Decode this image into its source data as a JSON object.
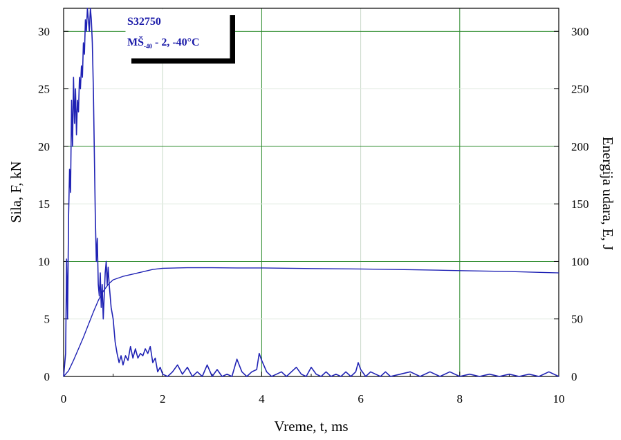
{
  "chart_data": {
    "type": "line",
    "xlabel": "Vreme,  t, ms",
    "ylabel_left": "Sila, F, kN",
    "ylabel_right": "Energija udara, E, J",
    "xlim": [
      0,
      10
    ],
    "ylim_left": [
      0,
      32
    ],
    "ylim_right": [
      0,
      320
    ],
    "x_ticks": [
      0,
      2,
      4,
      6,
      8,
      10
    ],
    "y_left_ticks": [
      0,
      5,
      10,
      15,
      20,
      25,
      30
    ],
    "y_right_ticks": [
      0,
      50,
      100,
      150,
      200,
      250,
      300
    ],
    "grid": true,
    "legend": {
      "position": "top-left",
      "line1": "S32750",
      "line2_main": "MŠ",
      "line2_sub": "-40",
      "line2_rest": " - 2,  -40°C"
    },
    "series": [
      {
        "axis": "left",
        "x": [
          0.0,
          0.04,
          0.06,
          0.08,
          0.1,
          0.12,
          0.14,
          0.16,
          0.18,
          0.2,
          0.22,
          0.24,
          0.26,
          0.28,
          0.3,
          0.32,
          0.34,
          0.36,
          0.38,
          0.4,
          0.42,
          0.44,
          0.46,
          0.48,
          0.5,
          0.52,
          0.54,
          0.56,
          0.58,
          0.6,
          0.62,
          0.64,
          0.66,
          0.68,
          0.7,
          0.72,
          0.74,
          0.76,
          0.78,
          0.8,
          0.82,
          0.84,
          0.86,
          0.88,
          0.9,
          0.92,
          0.94,
          0.96,
          1.0,
          1.04,
          1.08,
          1.12,
          1.16,
          1.2,
          1.25,
          1.3,
          1.35,
          1.4,
          1.45,
          1.5,
          1.55,
          1.6,
          1.65,
          1.7,
          1.75,
          1.8,
          1.85,
          1.9,
          1.95,
          2.0,
          2.1,
          2.2,
          2.3,
          2.4,
          2.5,
          2.6,
          2.7,
          2.8,
          2.9,
          3.0,
          3.1,
          3.2,
          3.3,
          3.4,
          3.5,
          3.6,
          3.7,
          3.8,
          3.9,
          3.95,
          4.0,
          4.1,
          4.2,
          4.3,
          4.4,
          4.5,
          4.6,
          4.7,
          4.8,
          4.9,
          5.0,
          5.1,
          5.2,
          5.3,
          5.4,
          5.5,
          5.6,
          5.7,
          5.8,
          5.9,
          5.95,
          6.0,
          6.1,
          6.2,
          6.3,
          6.4,
          6.5,
          6.6,
          6.8,
          7.0,
          7.2,
          7.4,
          7.6,
          7.8,
          8.0,
          8.2,
          8.4,
          8.6,
          8.8,
          9.0,
          9.2,
          9.4,
          9.6,
          9.8,
          10.0
        ],
        "y": [
          0.0,
          2.0,
          10.2,
          5.0,
          14.0,
          18.0,
          16.0,
          24.0,
          20.0,
          26.0,
          22.0,
          25.0,
          21.0,
          24.0,
          23.0,
          26.0,
          25.0,
          27.0,
          26.0,
          29.0,
          28.0,
          31.0,
          30.0,
          32.0,
          31.0,
          30.0,
          32.0,
          31.0,
          29.0,
          25.0,
          19.5,
          14.0,
          10.0,
          12.0,
          8.0,
          7.0,
          9.0,
          6.0,
          8.0,
          5.0,
          7.0,
          9.0,
          10.0,
          8.0,
          9.5,
          8.0,
          7.0,
          6.0,
          5.0,
          3.0,
          2.0,
          1.2,
          1.8,
          1.0,
          1.8,
          1.4,
          2.6,
          1.6,
          2.4,
          1.6,
          2.0,
          1.8,
          2.4,
          2.0,
          2.6,
          1.2,
          1.6,
          0.4,
          0.8,
          0.2,
          0.0,
          0.4,
          1.0,
          0.2,
          0.8,
          0.0,
          0.4,
          0.0,
          1.0,
          0.0,
          0.6,
          0.0,
          0.2,
          0.0,
          1.5,
          0.4,
          0.0,
          0.4,
          0.6,
          2.0,
          1.4,
          0.4,
          0.0,
          0.2,
          0.4,
          0.0,
          0.4,
          0.8,
          0.2,
          0.0,
          0.8,
          0.2,
          0.0,
          0.4,
          0.0,
          0.2,
          0.0,
          0.4,
          0.0,
          0.4,
          1.2,
          0.6,
          0.0,
          0.4,
          0.2,
          0.0,
          0.4,
          0.0,
          0.2,
          0.4,
          0.0,
          0.4,
          0.0,
          0.4,
          0.0,
          0.2,
          0.0,
          0.2,
          0.0,
          0.2,
          0.0,
          0.2,
          0.0,
          0.4,
          0.0
        ]
      },
      {
        "axis": "right",
        "x": [
          0.0,
          0.1,
          0.2,
          0.3,
          0.4,
          0.5,
          0.6,
          0.7,
          0.8,
          0.9,
          1.0,
          1.2,
          1.4,
          1.6,
          1.8,
          2.0,
          2.5,
          3.0,
          3.5,
          4.0,
          5.0,
          6.0,
          7.0,
          8.0,
          9.0,
          10.0
        ],
        "y": [
          0,
          5,
          14,
          24,
          34,
          45,
          56,
          66,
          74,
          80,
          84,
          87,
          89,
          91,
          93,
          94,
          94.5,
          94.5,
          94.3,
          94.3,
          93.8,
          93.4,
          92.8,
          92.0,
          91.2,
          90.0
        ]
      }
    ]
  }
}
